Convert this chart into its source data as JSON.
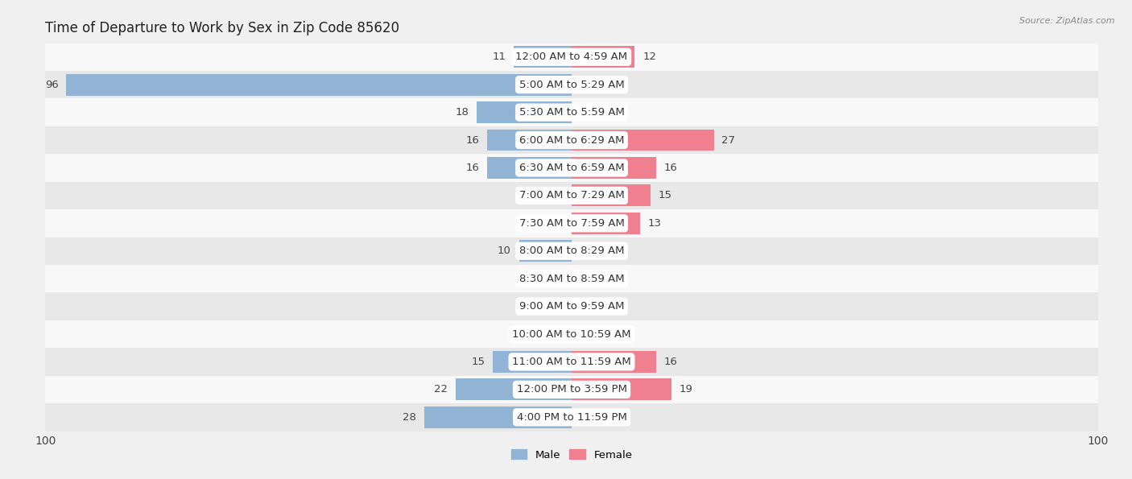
{
  "title": "Time of Departure to Work by Sex in Zip Code 85620",
  "source": "Source: ZipAtlas.com",
  "categories": [
    "12:00 AM to 4:59 AM",
    "5:00 AM to 5:29 AM",
    "5:30 AM to 5:59 AM",
    "6:00 AM to 6:29 AM",
    "6:30 AM to 6:59 AM",
    "7:00 AM to 7:29 AM",
    "7:30 AM to 7:59 AM",
    "8:00 AM to 8:29 AM",
    "8:30 AM to 8:59 AM",
    "9:00 AM to 9:59 AM",
    "10:00 AM to 10:59 AM",
    "11:00 AM to 11:59 AM",
    "12:00 PM to 3:59 PM",
    "4:00 PM to 11:59 PM"
  ],
  "male_values": [
    11,
    96,
    18,
    16,
    16,
    0,
    0,
    10,
    0,
    0,
    0,
    15,
    22,
    28
  ],
  "female_values": [
    12,
    0,
    0,
    27,
    16,
    15,
    13,
    0,
    0,
    0,
    0,
    16,
    19,
    0
  ],
  "male_color": "#92b4d4",
  "female_color": "#f08090",
  "male_label": "Male",
  "female_label": "Female",
  "axis_max": 100,
  "bg_color": "#f0f0f0",
  "row_light": "#f8f8f8",
  "row_dark": "#e8e8e8",
  "label_fontsize": 9.5,
  "title_fontsize": 12,
  "bar_height": 0.78
}
